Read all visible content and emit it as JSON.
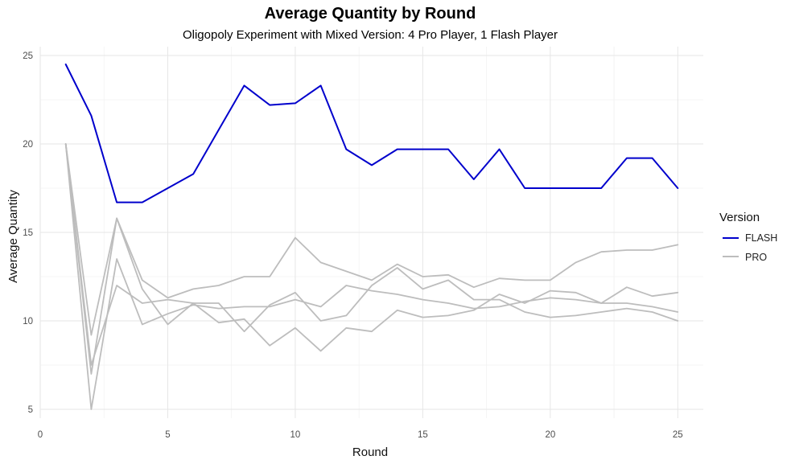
{
  "chart_data": {
    "type": "line",
    "title": "Average Quantity by Round",
    "subtitle": "Oligopoly Experiment with Mixed Version: 4 Pro Player, 1 Flash Player",
    "xlabel": "Round",
    "ylabel": "Average Quantity",
    "xlim": [
      0,
      26
    ],
    "ylim": [
      4.5,
      25.5
    ],
    "xticks": [
      0,
      5,
      10,
      15,
      20,
      25
    ],
    "yticks": [
      5,
      10,
      15,
      20,
      25
    ],
    "grid": true,
    "legend": {
      "title": "Version",
      "position": "right",
      "entries": [
        {
          "label": "FLASH",
          "color": "#0000cc"
        },
        {
          "label": "PRO",
          "color": "#bdbdbd"
        }
      ]
    },
    "x": [
      1,
      2,
      3,
      4,
      5,
      6,
      7,
      8,
      9,
      10,
      11,
      12,
      13,
      14,
      15,
      16,
      17,
      18,
      19,
      20,
      21,
      22,
      23,
      24,
      25
    ],
    "series": [
      {
        "name": "FLASH",
        "group": "FLASH",
        "color": "#0000cc",
        "values": [
          24.5,
          21.6,
          16.7,
          16.7,
          17.5,
          18.3,
          20.8,
          23.3,
          22.2,
          22.3,
          23.3,
          19.7,
          18.8,
          19.7,
          19.7,
          19.7,
          18.0,
          19.7,
          17.5,
          17.5,
          17.5,
          17.5,
          19.2,
          19.2,
          17.5
        ]
      },
      {
        "group": "PRO",
        "color": "#bdbdbd",
        "values": [
          20.0,
          7.0,
          15.8,
          12.3,
          11.3,
          11.8,
          12.0,
          12.5,
          12.5,
          14.7,
          13.3,
          12.8,
          12.3,
          13.2,
          12.5,
          12.6,
          11.9,
          12.4,
          12.3,
          12.3,
          13.3,
          13.9,
          14.0,
          14.0,
          14.3
        ]
      },
      {
        "group": "PRO",
        "color": "#bdbdbd",
        "values": [
          20.0,
          9.2,
          15.8,
          11.8,
          9.8,
          11.0,
          9.9,
          10.1,
          8.6,
          9.6,
          8.3,
          9.6,
          9.4,
          10.6,
          10.2,
          10.3,
          10.6,
          11.5,
          11.0,
          11.7,
          11.6,
          11.0,
          11.9,
          11.4,
          11.6
        ]
      },
      {
        "group": "PRO",
        "color": "#bdbdbd",
        "values": [
          20.0,
          5.0,
          13.5,
          9.8,
          10.4,
          10.9,
          10.7,
          10.8,
          10.8,
          11.2,
          10.8,
          12.0,
          11.7,
          11.5,
          11.2,
          11.0,
          10.7,
          10.8,
          11.1,
          11.3,
          11.2,
          11.0,
          11.0,
          10.8,
          10.5
        ]
      },
      {
        "group": "PRO",
        "color": "#bdbdbd",
        "values": [
          20.0,
          7.5,
          12.0,
          11.0,
          11.2,
          11.0,
          11.0,
          9.4,
          10.9,
          11.6,
          10.0,
          10.3,
          12.0,
          13.0,
          11.8,
          12.3,
          11.2,
          11.2,
          10.5,
          10.2,
          10.3,
          10.5,
          10.7,
          10.5,
          10.0
        ]
      }
    ]
  }
}
